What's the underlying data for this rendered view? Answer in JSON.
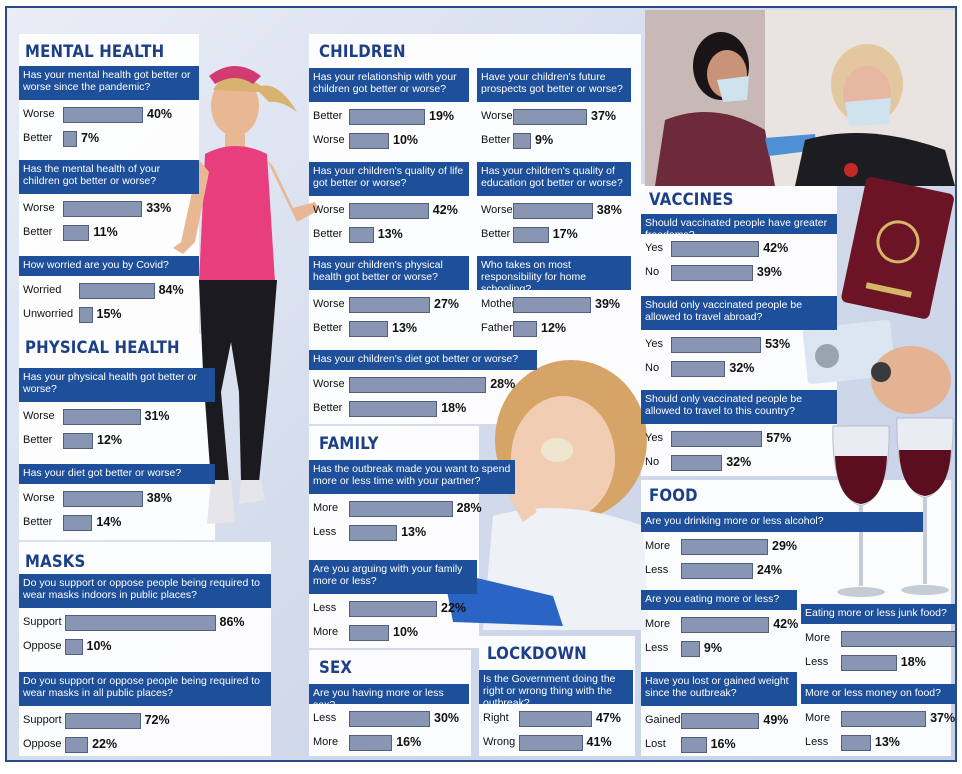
{
  "sections": [
    {
      "id": "mental",
      "title": "MENTAL HEALTH"
    },
    {
      "id": "physical",
      "title": "PHYSICAL HEALTH"
    },
    {
      "id": "masks",
      "title": "MASKS"
    },
    {
      "id": "children",
      "title": "CHILDREN"
    },
    {
      "id": "family",
      "title": "FAMILY"
    },
    {
      "id": "sex",
      "title": "SEX"
    },
    {
      "id": "lockdown",
      "title": "LOCKDOWN"
    },
    {
      "id": "vaccines",
      "title": "VACCINES"
    },
    {
      "id": "food",
      "title": "FOOD"
    }
  ],
  "chart_data": [
    {
      "type": "bar",
      "section": "mental",
      "question": "Has your mental health got better or worse since the pandemic?",
      "categories": [
        "Worse",
        "Better"
      ],
      "values": [
        40,
        7
      ],
      "unit": "%"
    },
    {
      "type": "bar",
      "section": "mental",
      "question": "Has the mental health of your children got better or worse?",
      "categories": [
        "Worse",
        "Better"
      ],
      "values": [
        33,
        11
      ],
      "unit": "%"
    },
    {
      "type": "bar",
      "section": "mental",
      "question": "How worried are you by Covid?",
      "categories": [
        "Worried",
        "Unworried"
      ],
      "values": [
        84,
        15
      ],
      "unit": "%"
    },
    {
      "type": "bar",
      "section": "physical",
      "question": "Has your physical health got better or worse?",
      "categories": [
        "Worse",
        "Better"
      ],
      "values": [
        31,
        12
      ],
      "unit": "%"
    },
    {
      "type": "bar",
      "section": "physical",
      "question": "Has your diet got better or worse?",
      "categories": [
        "Worse",
        "Better"
      ],
      "values": [
        38,
        14
      ],
      "unit": "%"
    },
    {
      "type": "bar",
      "section": "masks",
      "question": "Do you support or oppose people being required to wear masks indoors in public places?",
      "categories": [
        "Support",
        "Oppose"
      ],
      "values": [
        86,
        10
      ],
      "unit": "%"
    },
    {
      "type": "bar",
      "section": "masks",
      "question": "Do you support or oppose people being required to wear masks in all public places?",
      "categories": [
        "Support",
        "Oppose"
      ],
      "values": [
        72,
        22
      ],
      "unit": "%"
    },
    {
      "type": "bar",
      "section": "children",
      "question": "Has your relationship with your children got better or worse?",
      "categories": [
        "Better",
        "Worse"
      ],
      "values": [
        19,
        10
      ],
      "unit": "%"
    },
    {
      "type": "bar",
      "section": "children",
      "question": "Have your children's future prospects got better or worse?",
      "categories": [
        "Worse",
        "Better"
      ],
      "values": [
        37,
        9
      ],
      "unit": "%"
    },
    {
      "type": "bar",
      "section": "children",
      "question": "Has your children's quality of life got better or worse?",
      "categories": [
        "Worse",
        "Better"
      ],
      "values": [
        42,
        13
      ],
      "unit": "%"
    },
    {
      "type": "bar",
      "section": "children",
      "question": "Has your children's quality of education got better or worse?",
      "categories": [
        "Worse",
        "Better"
      ],
      "values": [
        38,
        17
      ],
      "unit": "%"
    },
    {
      "type": "bar",
      "section": "children",
      "question": "Has your children's physical health got better or worse?",
      "categories": [
        "Worse",
        "Better"
      ],
      "values": [
        27,
        13
      ],
      "unit": "%"
    },
    {
      "type": "bar",
      "section": "children",
      "question": "Who takes on most responsibility for home schooling?",
      "categories": [
        "Mothers",
        "Fathers"
      ],
      "values": [
        39,
        12
      ],
      "unit": "%"
    },
    {
      "type": "bar",
      "section": "children",
      "question": "Has your children's diet got better or worse?",
      "categories": [
        "Worse",
        "Better"
      ],
      "values": [
        28,
        18
      ],
      "unit": "%"
    },
    {
      "type": "bar",
      "section": "family",
      "question": "Has the outbreak made you want to spend more or less time with your partner?",
      "categories": [
        "More",
        "Less"
      ],
      "values": [
        28,
        13
      ],
      "unit": "%"
    },
    {
      "type": "bar",
      "section": "family",
      "question": "Are you arguing with your family more or less?",
      "categories": [
        "Less",
        "More"
      ],
      "values": [
        22,
        10
      ],
      "unit": "%"
    },
    {
      "type": "bar",
      "section": "sex",
      "question": "Are you having more or less sex?",
      "categories": [
        "Less",
        "More"
      ],
      "values": [
        30,
        16
      ],
      "unit": "%"
    },
    {
      "type": "bar",
      "section": "lockdown",
      "question": "Is the Government doing the right or wrong thing with the outbreak?",
      "categories": [
        "Right",
        "Wrong"
      ],
      "values": [
        47,
        41
      ],
      "unit": "%"
    },
    {
      "type": "bar",
      "section": "vaccines",
      "question": "Should vaccinated people have greater freedoms?",
      "categories": [
        "Yes",
        "No"
      ],
      "values": [
        42,
        39
      ],
      "unit": "%"
    },
    {
      "type": "bar",
      "section": "vaccines",
      "question": "Should only vaccinated people be allowed to travel abroad?",
      "categories": [
        "Yes",
        "No"
      ],
      "values": [
        53,
        32
      ],
      "unit": "%"
    },
    {
      "type": "bar",
      "section": "vaccines",
      "question": "Should only vaccinated people be allowed to travel to this country?",
      "categories": [
        "Yes",
        "No"
      ],
      "values": [
        57,
        32
      ],
      "unit": "%"
    },
    {
      "type": "bar",
      "section": "food",
      "question": "Are you drinking more or less alcohol?",
      "categories": [
        "More",
        "Less"
      ],
      "values": [
        29,
        24
      ],
      "unit": "%"
    },
    {
      "type": "bar",
      "section": "food",
      "question": "Are you eating more or less?",
      "categories": [
        "More",
        "Less"
      ],
      "values": [
        42,
        9
      ],
      "unit": "%"
    },
    {
      "type": "bar",
      "section": "food",
      "question": "Eating more or less junk food?",
      "categories": [
        "More",
        "Less"
      ],
      "values": [
        37,
        18
      ],
      "unit": "%"
    },
    {
      "type": "bar",
      "section": "food",
      "question": "Have you lost or gained weight since the outbreak?",
      "categories": [
        "Gained",
        "Lost"
      ],
      "values": [
        49,
        16
      ],
      "unit": "%"
    },
    {
      "type": "bar",
      "section": "food",
      "question": "More or less money on food?",
      "categories": [
        "More",
        "Less"
      ],
      "values": [
        37,
        13
      ],
      "unit": "%"
    }
  ]
}
